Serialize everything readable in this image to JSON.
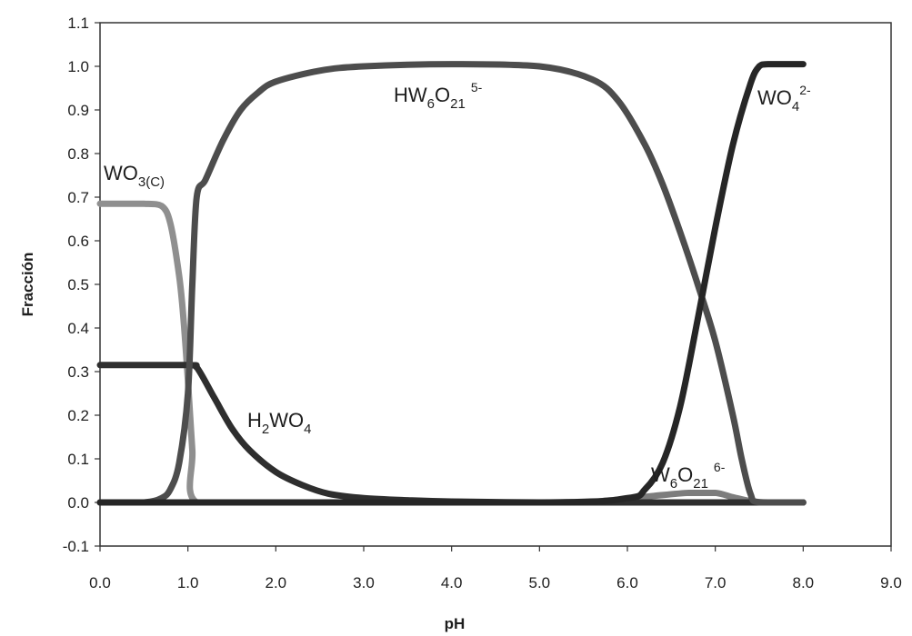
{
  "chart_data": {
    "type": "line",
    "title": "",
    "xlabel": "pH",
    "ylabel": "Fracción",
    "xlim": [
      0.0,
      9.0
    ],
    "ylim": [
      -0.1,
      1.1
    ],
    "xticks": [
      "0.0",
      "1.0",
      "2.0",
      "3.0",
      "4.0",
      "5.0",
      "6.0",
      "7.0",
      "8.0",
      "9.0"
    ],
    "yticks": [
      "-0.1",
      "0.0",
      "0.1",
      "0.2",
      "0.3",
      "0.4",
      "0.5",
      "0.6",
      "0.7",
      "0.8",
      "0.9",
      "1.0",
      "1.1"
    ],
    "grid": false,
    "legend": "none",
    "series": [
      {
        "name": "WO3(C)",
        "color": "#8f8f8f",
        "x": [
          0.0,
          0.5,
          0.7,
          0.8,
          0.9,
          0.95,
          1.0,
          1.05,
          1.1,
          2.0,
          4.0,
          6.0,
          8.0
        ],
        "y": [
          0.685,
          0.685,
          0.68,
          0.64,
          0.52,
          0.42,
          0.28,
          0.12,
          0.0,
          0.0,
          0.0,
          0.0,
          0.0
        ]
      },
      {
        "name": "H2WO4",
        "color": "#2e2e2e",
        "x": [
          0.0,
          1.0,
          1.1,
          1.3,
          1.5,
          1.7,
          2.0,
          2.3,
          2.6,
          3.0,
          3.5,
          4.0,
          5.0,
          6.0,
          7.0,
          8.0
        ],
        "y": [
          0.315,
          0.315,
          0.31,
          0.24,
          0.17,
          0.12,
          0.07,
          0.04,
          0.02,
          0.01,
          0.005,
          0.002,
          0.0,
          0.0,
          0.0,
          0.0
        ]
      },
      {
        "name": "HW6O21 5-",
        "color": "#4d4d4d",
        "x": [
          0.0,
          0.5,
          0.7,
          0.8,
          0.9,
          1.0,
          1.05,
          1.1,
          1.2,
          1.4,
          1.6,
          1.8,
          2.0,
          2.5,
          3.0,
          4.0,
          5.0,
          5.6,
          5.9,
          6.2,
          6.4,
          6.6,
          6.8,
          7.0,
          7.2,
          7.3,
          7.4,
          7.5,
          8.0
        ],
        "y": [
          0.0,
          0.0,
          0.01,
          0.03,
          0.09,
          0.25,
          0.5,
          0.7,
          0.74,
          0.83,
          0.9,
          0.94,
          0.965,
          0.99,
          1.0,
          1.005,
          1.0,
          0.97,
          0.92,
          0.82,
          0.73,
          0.62,
          0.5,
          0.37,
          0.2,
          0.1,
          0.02,
          0.0,
          0.0
        ]
      },
      {
        "name": "WO4 2-",
        "color": "#262626",
        "x": [
          0.0,
          5.0,
          6.0,
          6.2,
          6.4,
          6.6,
          6.8,
          7.0,
          7.2,
          7.4,
          7.5,
          7.6,
          8.0
        ],
        "y": [
          0.0,
          0.0,
          0.01,
          0.03,
          0.09,
          0.22,
          0.42,
          0.63,
          0.82,
          0.96,
          1.0,
          1.005,
          1.005
        ]
      },
      {
        "name": "W6O21 6-",
        "color": "#7d7d7d",
        "x": [
          0.0,
          5.0,
          5.8,
          6.3,
          6.7,
          7.0,
          7.2,
          7.4,
          7.6,
          8.0
        ],
        "y": [
          0.0,
          0.0,
          0.005,
          0.015,
          0.022,
          0.022,
          0.012,
          0.003,
          0.0,
          0.0
        ]
      }
    ],
    "labels": [
      {
        "base": "WO",
        "sub": "3(C)",
        "sup": ""
      },
      {
        "base": "H",
        "sub": "2",
        "mid": "WO",
        "sub2": "4",
        "sup": ""
      },
      {
        "base": "HW",
        "sub": "6",
        "mid": "O",
        "sub2": "21",
        "sup": "5-"
      },
      {
        "base": "WO",
        "sub": "4",
        "sup": "2-"
      },
      {
        "base": "W",
        "sub": "6",
        "mid": "O",
        "sub2": "21",
        "sup": "6-"
      }
    ]
  }
}
